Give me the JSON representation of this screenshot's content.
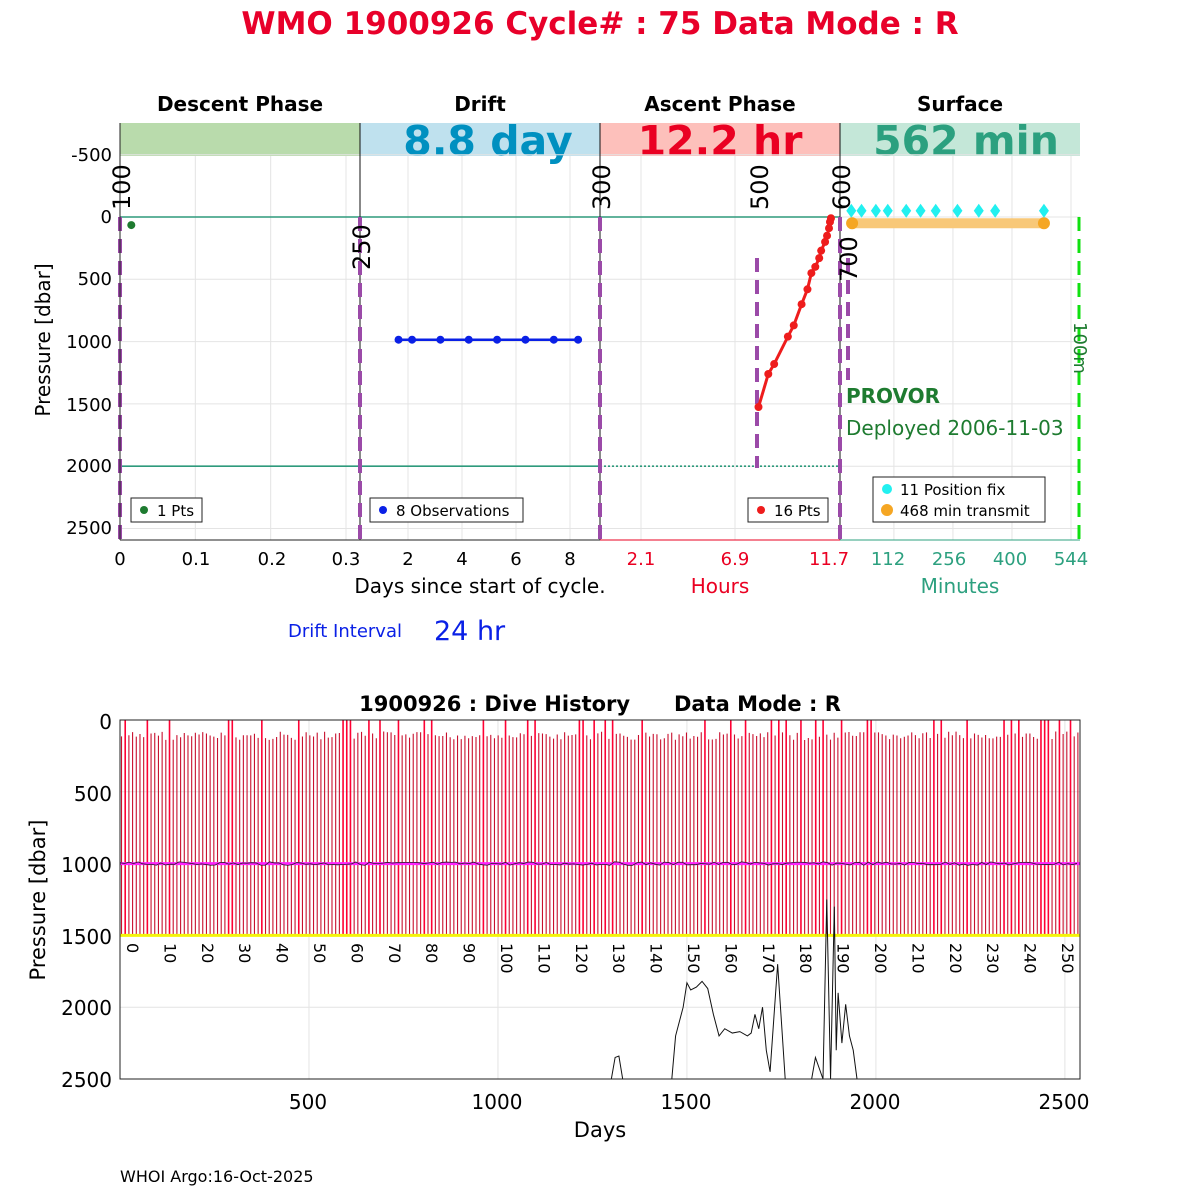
{
  "title": "WMO 1900926   Cycle# : 75   Data Mode : R",
  "colors": {
    "title": "#e8002a",
    "descent": "#b9dbac",
    "drift": "#bfe1ee",
    "ascent": "#fdc0bb",
    "surface": "#c4e7d8",
    "drift_text": "#0090c0",
    "ascent_text": "#ea0022",
    "surface_text": "#2ca07f",
    "green_text": "#1e7b30",
    "purple": "#9b4aa8",
    "cyan": "#22f0f0",
    "orange": "#f5a623",
    "red_line": "#ee1c1c",
    "blue": "#0a20e6",
    "teal_line": "#2e9a7c",
    "magenta": "#ff22ff",
    "yellow": "#f4f40a",
    "crimson": "#c8102e",
    "bright_green": "#10e010"
  },
  "top_chart": {
    "phases": [
      {
        "name": "Descent Phase",
        "value": ""
      },
      {
        "name": "Drift",
        "value": "8.8 day"
      },
      {
        "name": "Ascent Phase",
        "value": "12.2 hr"
      },
      {
        "name": "Surface",
        "value": "562 min"
      }
    ],
    "ylabel": "Pressure [dbar]",
    "y_ticks": [
      "-500",
      "0",
      "500",
      "1000",
      "1500",
      "2000",
      "2500"
    ],
    "ylim": [
      -700,
      2600
    ],
    "descent_ticks": [
      "0",
      "0.1",
      "0.2",
      "0.3"
    ],
    "drift_ticks": [
      "2",
      "4",
      "6",
      "8"
    ],
    "ascent_ticks": [
      "2.1",
      "6.9",
      "11.7"
    ],
    "surface_ticks": [
      "112",
      "256",
      "400",
      "544"
    ],
    "xlabel_days": "Days since start of cycle.",
    "xlabel_hours": "Hours",
    "xlabel_minutes": "Minutes",
    "vline_labels": [
      "100",
      "250",
      "300",
      "500",
      "600",
      "700",
      "100m"
    ],
    "float_type": "PROVOR",
    "deployed": "Deployed 2006-11-03",
    "legend_descent": "1 Pts",
    "legend_drift": "8 Observations",
    "legend_ascent": "16 Pts",
    "legend_position_fix": "11 Position fix",
    "legend_transmit": "468 min transmit",
    "drift_interval_label": "Drift Interval",
    "drift_interval_value": "24 hr"
  },
  "chart_data": [
    {
      "type": "scatter",
      "title": "WMO 1900926   Cycle# : 75   Data Mode : R",
      "ylabel": "Pressure [dbar]",
      "ylim": [
        -700,
        2600
      ],
      "series": [
        {
          "name": "Descent",
          "x_days": [
            0.015
          ],
          "y": [
            65
          ]
        },
        {
          "name": "Drift",
          "x_days": [
            1.65,
            2.15,
            3.2,
            4.25,
            5.3,
            6.35,
            7.4,
            8.3
          ],
          "y": [
            985,
            985,
            985,
            985,
            985,
            985,
            985,
            985
          ]
        },
        {
          "name": "Ascent",
          "x_hours": [
            8.1,
            8.6,
            8.9,
            9.6,
            9.9,
            10.3,
            10.6,
            10.8,
            11.0,
            11.2,
            11.3,
            11.5,
            11.6,
            11.7,
            11.75,
            11.8
          ],
          "y": [
            1525,
            1260,
            1180,
            960,
            870,
            700,
            580,
            450,
            400,
            330,
            270,
            200,
            150,
            90,
            40,
            10
          ]
        },
        {
          "name": "Position fix",
          "x_minutes": [
            8,
            33,
            68,
            97,
            142,
            177,
            214,
            267,
            319,
            359,
            478
          ],
          "y": [
            -50,
            -50,
            -50,
            -50,
            -50,
            -50,
            -50,
            -50,
            -50,
            -50,
            -50
          ]
        },
        {
          "name": "Transmit",
          "x_minutes": [
            10,
            478
          ],
          "y": [
            50,
            50
          ]
        }
      ]
    },
    {
      "type": "line",
      "title": "1900926 : Dive History      Data Mode : R",
      "xlabel": "Days",
      "ylabel": "Pressure [dbar]",
      "xlim": [
        0,
        2540
      ],
      "ylim": [
        0,
        2500
      ],
      "x_ticks": [
        500,
        1000,
        1500,
        2000,
        2500
      ],
      "y_ticks": [
        0,
        500,
        1000,
        1500,
        2000,
        2500
      ],
      "cycle_labels": [
        "0",
        "10",
        "20",
        "30",
        "40",
        "50",
        "60",
        "70",
        "80",
        "90",
        "100",
        "110",
        "120",
        "130",
        "140",
        "150",
        "160",
        "170",
        "180",
        "190",
        "200",
        "210",
        "220",
        "230",
        "240",
        "250"
      ],
      "drift_pressure": 1000,
      "profile_pressure": 1500,
      "grounding_series": {
        "x": [
          1300,
          1310,
          1320,
          1330,
          1460,
          1470,
          1490,
          1500,
          1510,
          1525,
          1540,
          1555,
          1570,
          1585,
          1600,
          1620,
          1640,
          1660,
          1670,
          1680,
          1690,
          1700,
          1710,
          1720,
          1740,
          1760,
          1830,
          1840,
          1860,
          1870,
          1880,
          1890,
          1895,
          1900,
          1910,
          1920,
          1930,
          1940,
          1950
        ],
        "y": [
          2500,
          2350,
          2340,
          2500,
          2500,
          2200,
          2000,
          1830,
          1880,
          1860,
          1820,
          1870,
          2050,
          2200,
          2150,
          2180,
          2170,
          2200,
          2180,
          2050,
          2150,
          2000,
          2300,
          2450,
          1700,
          2500,
          2500,
          2350,
          2500,
          1250,
          2500,
          1300,
          2300,
          1900,
          2250,
          1980,
          2200,
          2300,
          2500
        ]
      }
    }
  ],
  "bottom_chart": {
    "title": "1900926 : Dive History      Data Mode : R",
    "xlabel": "Days",
    "ylabel": "Pressure [dbar]",
    "y_ticks": [
      "0",
      "500",
      "1000",
      "1500",
      "2000",
      "2500"
    ],
    "x_ticks": [
      "500",
      "1000",
      "1500",
      "2000",
      "2500"
    ]
  },
  "footer": "WHOI Argo:16-Oct-2025"
}
